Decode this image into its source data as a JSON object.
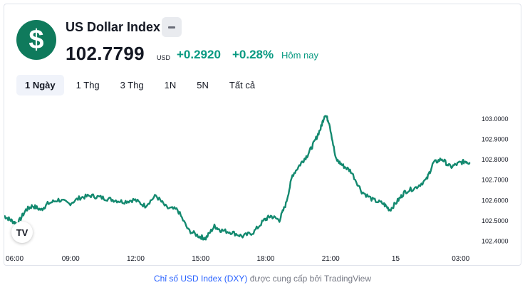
{
  "header": {
    "logo_symbol": "$",
    "name": "US Dollar Index",
    "price": "102.7799",
    "currency": "USD",
    "change": "+0.2920",
    "change_percent": "+0.28%",
    "period_label": "Hôm nay",
    "positive_color": "#089981",
    "icons": [
      "dollar-logo-icon",
      "minus-icon",
      "tradingview-logo-icon"
    ]
  },
  "ranges": [
    "1 Ngày",
    "1 Thg",
    "3 Thg",
    "1N",
    "5N",
    "Tất cả"
  ],
  "active_range": "1 Ngày",
  "tv_logo_text": "TV",
  "footer": {
    "link_text": "Chỉ số USD Index (DXY)",
    "rest_text": " được cung cấp bởi TradingView"
  },
  "chart_data": {
    "type": "line",
    "series_color": "#13896f",
    "y_ticks": [
      "103.0000",
      "102.9000",
      "102.8000",
      "102.7000",
      "102.6000",
      "102.5000",
      "102.4000"
    ],
    "ylim": [
      102.37,
      103.07
    ],
    "x_ticks": [
      "06:00",
      "09:00",
      "12:00",
      "15:00",
      "18:00",
      "21:00",
      "15",
      "03:00"
    ],
    "x_hours": [
      6,
      9,
      12,
      15,
      18,
      21,
      24,
      27
    ],
    "xlim": [
      6,
      27.7
    ],
    "x": [
      6.0,
      6.3,
      6.6,
      7.0,
      7.3,
      7.7,
      8.0,
      8.5,
      9.0,
      9.5,
      10.0,
      10.5,
      11.0,
      11.5,
      12.0,
      12.5,
      13.0,
      13.5,
      14.0,
      14.5,
      15.0,
      15.3,
      15.7,
      16.0,
      16.5,
      17.0,
      17.5,
      18.0,
      18.3,
      18.7,
      19.0,
      19.3,
      19.7,
      20.0,
      20.3,
      20.6,
      20.8,
      21.0,
      21.3,
      21.6,
      22.0,
      22.5,
      23.0,
      23.5,
      23.8,
      24.2,
      24.5,
      25.0,
      25.5,
      25.8,
      26.2,
      26.6,
      27.0,
      27.3,
      27.5
    ],
    "y": [
      102.52,
      102.5,
      102.48,
      102.55,
      102.57,
      102.55,
      102.58,
      102.6,
      102.58,
      102.61,
      102.62,
      102.61,
      102.6,
      102.59,
      102.6,
      102.57,
      102.62,
      102.56,
      102.55,
      102.45,
      102.42,
      102.41,
      102.47,
      102.45,
      102.44,
      102.42,
      102.44,
      102.5,
      102.52,
      102.5,
      102.58,
      102.72,
      102.78,
      102.82,
      102.88,
      102.95,
      103.02,
      102.98,
      102.8,
      102.77,
      102.74,
      102.64,
      102.6,
      102.58,
      102.55,
      102.6,
      102.64,
      102.66,
      102.7,
      102.78,
      102.8,
      102.76,
      102.78,
      102.79,
      102.78
    ]
  }
}
